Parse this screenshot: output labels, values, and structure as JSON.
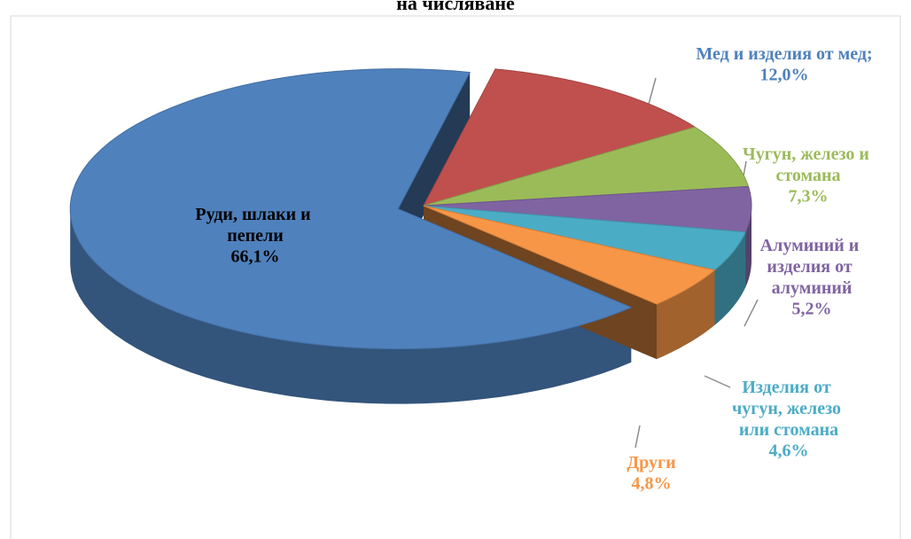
{
  "chart_data": {
    "type": "pie",
    "title": "на числяване",
    "categories": [
      "Руди, шлаки и пепели",
      "Мед и изделия от мед;",
      "Чугун, железо и стомана",
      "Алуминий и изделия от алуминий",
      "Изделия от чугун, железо или стомана",
      "Други"
    ],
    "values": [
      66.1,
      12.0,
      7.3,
      5.2,
      4.6,
      4.8
    ],
    "value_labels": [
      "66,1%",
      "12,0%",
      "7,3%",
      "5,2%",
      "4,6%",
      "4,8%"
    ],
    "colors": [
      "#4f81bd",
      "#c0504d",
      "#9bbb59",
      "#8064a2",
      "#4bacc6",
      "#f79646"
    ],
    "label_colors": [
      "#000000",
      "#4f81bd",
      "#9bbb59",
      "#8064a2",
      "#4bacc6",
      "#f79646"
    ]
  }
}
